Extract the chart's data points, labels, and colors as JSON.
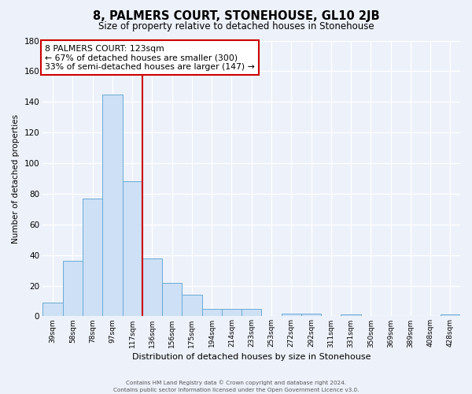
{
  "title": "8, PALMERS COURT, STONEHOUSE, GL10 2JB",
  "subtitle": "Size of property relative to detached houses in Stonehouse",
  "xlabel": "Distribution of detached houses by size in Stonehouse",
  "ylabel": "Number of detached properties",
  "bar_values": [
    9,
    36,
    77,
    145,
    88,
    38,
    22,
    14,
    5,
    5,
    5,
    0,
    2,
    2,
    0,
    1,
    0,
    0,
    0,
    0,
    1
  ],
  "bar_labels": [
    "39sqm",
    "58sqm",
    "78sqm",
    "97sqm",
    "117sqm",
    "136sqm",
    "156sqm",
    "175sqm",
    "194sqm",
    "214sqm",
    "233sqm",
    "253sqm",
    "272sqm",
    "292sqm",
    "311sqm",
    "331sqm",
    "350sqm",
    "369sqm",
    "389sqm",
    "408sqm",
    "428sqm"
  ],
  "bar_color": "#cde0f5",
  "bar_edge_color": "#6aaad4",
  "red_line_index": 4,
  "annotation_text": "8 PALMERS COURT: 123sqm\n← 67% of detached houses are smaller (300)\n33% of semi-detached houses are larger (147) →",
  "annotation_box_color": "#ffffff",
  "annotation_box_edge": "#cc0000",
  "ylim": [
    0,
    180
  ],
  "yticks": [
    0,
    20,
    40,
    60,
    80,
    100,
    120,
    140,
    160,
    180
  ],
  "footer_line1": "Contains HM Land Registry data © Crown copyright and database right 2024.",
  "footer_line2": "Contains public sector information licensed under the Open Government Licence v3.0.",
  "bg_color": "#edf2fa",
  "grid_color": "#ffffff"
}
